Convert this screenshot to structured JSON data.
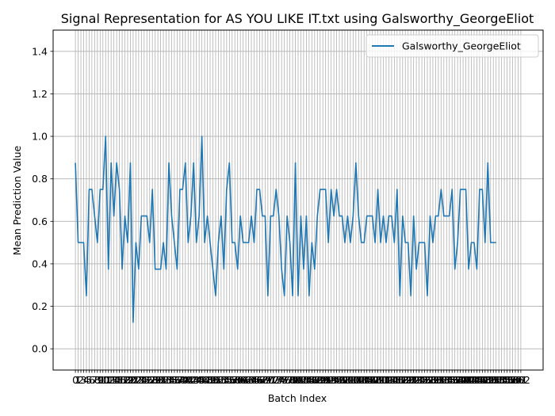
{
  "chart_data": {
    "type": "line",
    "title": "Signal Representation for AS YOU LIKE IT.txt using Galsworthy_GeorgeEliot",
    "xlabel": "Batch Index",
    "ylabel": "Mean Prediction Value",
    "ylim": [
      -0.1,
      1.5
    ],
    "yticks": [
      0.0,
      0.2,
      0.4,
      0.6,
      0.8,
      1.0,
      1.2,
      1.4
    ],
    "grid": true,
    "legend_position": "top-right",
    "colors": {
      "line": "#1f77b4",
      "grid": "#b0b0b0",
      "axes": "#000000"
    },
    "x_start": 0,
    "x_end": 162,
    "series": [
      {
        "name": "Galsworthy_GeorgeEliot",
        "values": [
          0.875,
          0.5,
          0.5,
          0.5,
          0.25,
          0.75,
          0.75,
          0.625,
          0.5,
          0.75,
          0.75,
          1.0,
          0.375,
          0.875,
          0.625,
          0.875,
          0.75,
          0.375,
          0.625,
          0.5,
          0.875,
          0.125,
          0.5,
          0.375,
          0.625,
          0.625,
          0.625,
          0.5,
          0.75,
          0.375,
          0.375,
          0.375,
          0.5,
          0.375,
          0.875,
          0.625,
          0.5,
          0.375,
          0.75,
          0.75,
          0.875,
          0.5,
          0.625,
          0.875,
          0.5,
          0.625,
          1.0,
          0.5,
          0.625,
          0.5,
          0.375,
          0.25,
          0.5,
          0.625,
          0.375,
          0.75,
          0.875,
          0.5,
          0.5,
          0.375,
          0.625,
          0.5,
          0.5,
          0.5,
          0.625,
          0.5,
          0.75,
          0.75,
          0.625,
          0.625,
          0.25,
          0.625,
          0.625,
          0.75,
          0.625,
          0.375,
          0.25,
          0.625,
          0.5,
          0.25,
          0.875,
          0.25,
          0.625,
          0.375,
          0.625,
          0.25,
          0.5,
          0.375,
          0.625,
          0.75,
          0.75,
          0.75,
          0.5,
          0.75,
          0.625,
          0.75,
          0.625,
          0.625,
          0.5,
          0.625,
          0.5,
          0.625,
          0.875,
          0.625,
          0.5,
          0.5,
          0.625,
          0.625,
          0.625,
          0.5,
          0.75,
          0.5,
          0.625,
          0.5,
          0.625,
          0.625,
          0.5,
          0.75,
          0.25,
          0.625,
          0.5,
          0.5,
          0.25,
          0.625,
          0.375,
          0.5,
          0.5,
          0.5,
          0.25,
          0.625,
          0.5,
          0.625,
          0.625,
          0.75,
          0.625,
          0.625,
          0.625,
          0.75,
          0.375,
          0.5,
          0.75,
          0.75,
          0.75,
          0.375,
          0.5,
          0.5,
          0.375,
          0.75,
          0.75,
          0.5,
          0.875,
          0.5,
          0.5,
          0.5
        ]
      }
    ]
  }
}
